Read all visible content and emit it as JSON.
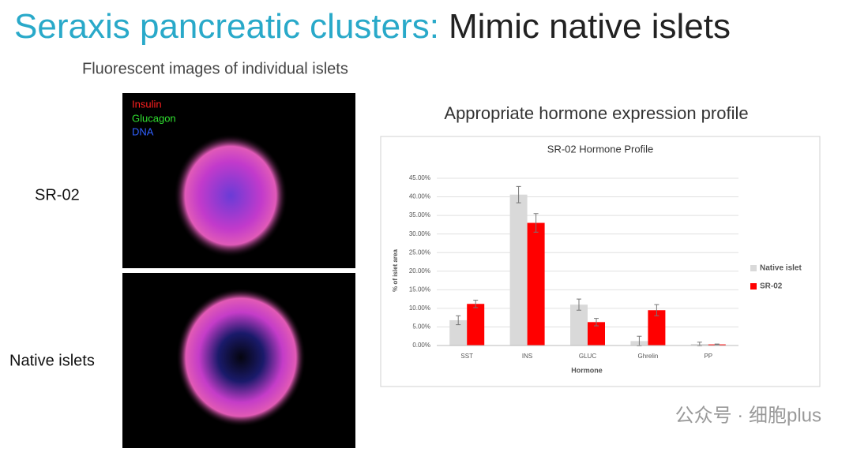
{
  "slide": {
    "title_part1": "Seraxis pancreatic clusters:",
    "title_part2": "Mimic native islets",
    "subtitle": "Fluorescent images of individual islets",
    "image_legend": [
      "Insulin",
      "Glucagon",
      "DNA"
    ],
    "row_labels": [
      "SR-02",
      "Native islets"
    ],
    "chart_heading": "Appropriate hormone expression profile",
    "watermark": "公众号 · 细胞plus"
  },
  "chart_data": {
    "type": "bar",
    "title": "SR-02 Hormone Profile",
    "x_label": "Hormone",
    "y_label": "% of islet area",
    "categories": [
      "SST",
      "INS",
      "GLUC",
      "Ghrelin",
      "PP"
    ],
    "series": [
      {
        "name": "Native islet",
        "color": "#d9d9d9",
        "values": [
          6.8,
          40.6,
          11.0,
          1.2,
          0.4
        ],
        "errors": [
          1.2,
          2.2,
          1.5,
          1.3,
          0.5
        ]
      },
      {
        "name": "SR-02",
        "color": "#ff0000",
        "values": [
          11.2,
          33.0,
          6.3,
          9.5,
          0.3
        ],
        "errors": [
          1.0,
          2.5,
          1.0,
          1.5,
          0.1
        ]
      }
    ],
    "ylim": [
      0,
      45
    ],
    "yticks": [
      {
        "value": 0,
        "label": "0.00%"
      },
      {
        "value": 5,
        "label": "5.00%"
      },
      {
        "value": 10,
        "label": "10.00%"
      },
      {
        "value": 15,
        "label": "15.00%"
      },
      {
        "value": 20,
        "label": "20.00%"
      },
      {
        "value": 25,
        "label": "25.00%"
      },
      {
        "value": 30,
        "label": "30.00%"
      },
      {
        "value": 35,
        "label": "35.00%"
      },
      {
        "value": 40,
        "label": "40.00%"
      },
      {
        "value": 45,
        "label": "45.00%"
      }
    ],
    "grid": true,
    "legend": "right"
  }
}
